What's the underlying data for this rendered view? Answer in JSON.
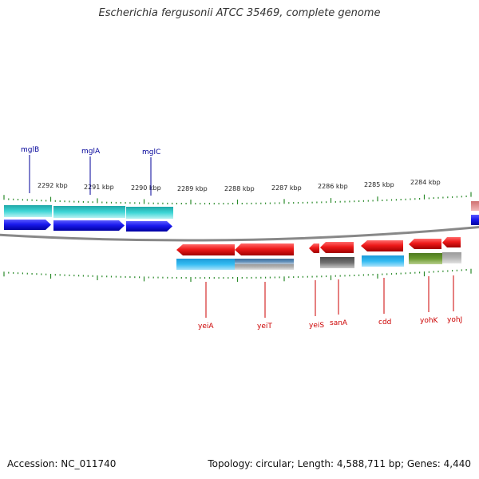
{
  "title": "Escherichia fergusonii ATCC 35469, complete genome",
  "footer": {
    "accession": "Accession: NC_011740",
    "summary": "Topology: circular; Length: 4,588,711 bp; Genes: 4,440"
  },
  "colors": {
    "gene_arrow": "#1a1aee",
    "gene_arrow_reverse": "#ee1a1a",
    "cds_cyan": "#33cccc",
    "cds_blue": "#22aaee",
    "backbone": "#888888",
    "tick": "#2a8a2a",
    "label_forward": "#000099",
    "label_reverse": "#cc0000"
  },
  "scale_labels": [
    "2292 kbp",
    "2291 kbp",
    "2290 kbp",
    "2289 kbp",
    "2288 kbp",
    "2287 kbp",
    "2286 kbp",
    "2285 kbp",
    "2284 kbp"
  ],
  "forward_genes": [
    {
      "name": "mglB"
    },
    {
      "name": "mglA"
    },
    {
      "name": "mglC"
    }
  ],
  "reverse_genes": [
    {
      "name": "yeiA"
    },
    {
      "name": "yeiT"
    },
    {
      "name": "yeiS"
    },
    {
      "name": "sanA"
    },
    {
      "name": "cdd"
    },
    {
      "name": "yohK"
    },
    {
      "name": "yohJ"
    }
  ]
}
